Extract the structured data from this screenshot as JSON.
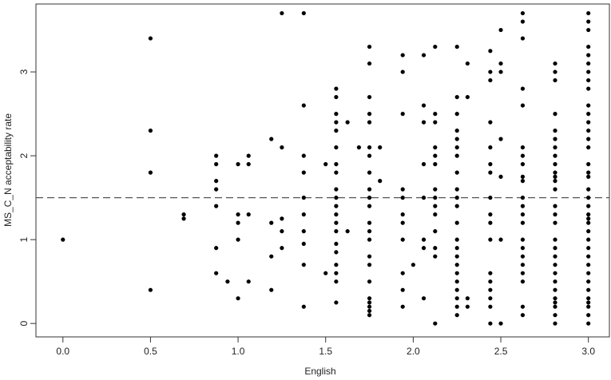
{
  "chart_data": {
    "type": "scatter",
    "x_label": "English",
    "y_label": "MS_C_N acceptability rate",
    "xlim": [
      -0.154,
      3.12
    ],
    "ylim": [
      -0.16,
      3.81
    ],
    "xticks": [
      {
        "value": 0,
        "label": "0.0"
      },
      0.5,
      {
        "value": 1,
        "label": "1.0"
      },
      1.5,
      {
        "value": 2,
        "label": "2.0"
      },
      2.5,
      {
        "value": 3,
        "label": "3.0"
      }
    ],
    "yticks": [
      0,
      1,
      2,
      3
    ],
    "hline": 1.5,
    "color": "#000000",
    "x": [
      0,
      0.5,
      0.5,
      0.5,
      0.5,
      0.69,
      0.69,
      0.875,
      0.875,
      0.875,
      0.875,
      0.875,
      0.875,
      0.875,
      0.94,
      1,
      1,
      1,
      1,
      1,
      1.06,
      1.06,
      1.06,
      1.06,
      1.19,
      1.19,
      1.19,
      1.19,
      1.25,
      1.25,
      1.25,
      1.25,
      1.25,
      1.375,
      1.375,
      1.375,
      1.375,
      1.375,
      1.375,
      1.375,
      1.375,
      1.375,
      1.375,
      1.5,
      1.5,
      1.56,
      1.56,
      1.56,
      1.56,
      1.56,
      1.56,
      1.56,
      1.56,
      1.56,
      1.56,
      1.56,
      1.56,
      1.56,
      1.56,
      1.56,
      1.56,
      1.56,
      1.56,
      1.56,
      1.56,
      1.625,
      1.625,
      1.69,
      1.75,
      1.75,
      1.75,
      1.75,
      1.75,
      1.75,
      1.75,
      1.75,
      1.75,
      1.75,
      1.75,
      1.75,
      1.75,
      1.75,
      1.75,
      1.75,
      1.75,
      1.75,
      1.75,
      1.75,
      1.75,
      1.75,
      1.81,
      1.81,
      1.94,
      1.94,
      1.94,
      1.94,
      1.94,
      1.94,
      1.94,
      1.94,
      1.94,
      1.94,
      1.94,
      2,
      2.06,
      2.06,
      2.06,
      2.06,
      2.06,
      2.06,
      2.06,
      2.06,
      2.125,
      2.125,
      2.125,
      2.125,
      2.125,
      2.125,
      2.125,
      2.125,
      2.125,
      2.125,
      2.125,
      2.125,
      2.125,
      2.125,
      2.25,
      2.25,
      2.25,
      2.25,
      2.25,
      2.25,
      2.25,
      2.25,
      2.25,
      2.25,
      2.25,
      2.25,
      2.25,
      2.25,
      2.25,
      2.25,
      2.25,
      2.25,
      2.25,
      2.25,
      2.25,
      2.25,
      2.31,
      2.31,
      2.31,
      2.31,
      2.44,
      2.44,
      2.44,
      2.44,
      2.44,
      2.44,
      2.44,
      2.44,
      2.44,
      2.44,
      2.44,
      2.44,
      2.44,
      2.44,
      2.44,
      2.44,
      2.44,
      2.5,
      2.5,
      2.5,
      2.5,
      2.5,
      2.5,
      2.5,
      2.625,
      2.625,
      2.625,
      2.625,
      2.625,
      2.625,
      2.625,
      2.625,
      2.625,
      2.625,
      2.625,
      2.625,
      2.625,
      2.625,
      2.625,
      2.625,
      2.625,
      2.625,
      2.625,
      2.625,
      2.625,
      2.625,
      2.81,
      2.81,
      2.81,
      2.81,
      2.81,
      2.81,
      2.81,
      2.81,
      2.81,
      2.81,
      2.81,
      2.81,
      2.81,
      2.81,
      2.81,
      2.81,
      2.81,
      2.81,
      2.81,
      2.81,
      2.81,
      2.81,
      2.81,
      2.81,
      2.81,
      2.81,
      2.81,
      2.81,
      3,
      3,
      3,
      3,
      3,
      3,
      3,
      3,
      3,
      3,
      3,
      3,
      3,
      3,
      3,
      3,
      3,
      3,
      3,
      3,
      3,
      3,
      3,
      3,
      3,
      3,
      3,
      3,
      3,
      3,
      3,
      3,
      3,
      3,
      3,
      3,
      3
    ],
    "values": [
      1,
      3.4,
      2.3,
      1.8,
      0.4,
      1.3,
      1.25,
      2,
      1.9,
      1.7,
      1.6,
      1.4,
      0.9,
      0.6,
      0.5,
      1.9,
      1.3,
      1.2,
      1,
      0.3,
      2,
      1.9,
      1.3,
      0.5,
      2.2,
      1.2,
      0.8,
      0.4,
      3.7,
      2.1,
      1.25,
      1.1,
      0.9,
      3.7,
      2.6,
      2,
      1.8,
      1.5,
      1.3,
      1.1,
      0.95,
      0.7,
      0.2,
      1.9,
      0.6,
      2.8,
      2.7,
      2.5,
      2.4,
      2.3,
      2.1,
      1.9,
      1.8,
      1.6,
      1.5,
      1.4,
      1.3,
      1.2,
      1.1,
      0.95,
      0.85,
      0.7,
      0.6,
      0.5,
      0.25,
      2.4,
      1.1,
      2.1,
      3.3,
      3.1,
      2.7,
      2.5,
      2.4,
      2.1,
      2,
      1.8,
      1.6,
      1.5,
      1.4,
      1.2,
      1.1,
      1,
      0.8,
      0.7,
      0.5,
      0.3,
      0.25,
      0.2,
      0.15,
      0.1,
      2.1,
      1.7,
      3.2,
      3,
      2.5,
      1.6,
      1.5,
      1.3,
      1.2,
      1,
      0.6,
      0.4,
      0.2,
      0.7,
      3.2,
      2.6,
      2.4,
      1.9,
      1.5,
      1,
      0.9,
      0.3,
      3.3,
      2.5,
      2.4,
      2.1,
      2,
      1.9,
      1.6,
      1.5,
      1.4,
      1.3,
      1.1,
      0.9,
      0.8,
      0,
      3.3,
      2.7,
      2.5,
      2.3,
      2.2,
      2.1,
      2,
      1.8,
      1.6,
      1.5,
      1.4,
      1.2,
      1,
      0.9,
      0.8,
      0.7,
      0.6,
      0.5,
      0.4,
      0.3,
      0.2,
      0.1,
      3.1,
      2.7,
      0.3,
      0.2,
      3.25,
      3,
      2.9,
      2.4,
      2.1,
      1.9,
      1.8,
      1.5,
      1.3,
      1.2,
      1,
      0.6,
      0.5,
      0.4,
      0.3,
      0.2,
      0,
      3.5,
      3.1,
      3,
      2.2,
      1.75,
      1,
      0,
      3.7,
      3.6,
      3.4,
      2.8,
      2.6,
      2.1,
      2,
      1.9,
      1.75,
      1.7,
      1.5,
      1.4,
      1.3,
      1.2,
      1,
      0.9,
      0.8,
      0.7,
      0.6,
      0.5,
      0.2,
      0.1,
      3.1,
      3,
      2.9,
      2.5,
      2.3,
      2.2,
      2.1,
      2,
      1.9,
      1.8,
      1.75,
      1.7,
      1.6,
      1.4,
      1.3,
      1.2,
      1,
      0.9,
      0.8,
      0.7,
      0.6,
      0.5,
      0.4,
      0.3,
      0.25,
      0.2,
      0.1,
      0,
      3.7,
      3.6,
      3.5,
      3.3,
      3.2,
      3.1,
      3,
      2.9,
      2.8,
      2.6,
      2.5,
      2.4,
      2.3,
      2.2,
      2.1,
      1.9,
      1.8,
      1.75,
      1.6,
      1.5,
      1.4,
      1.3,
      1.25,
      1.2,
      1.1,
      1,
      0.9,
      0.8,
      0.7,
      0.6,
      0.5,
      0.4,
      0.3,
      0.25,
      0.2,
      0.1,
      0
    ]
  }
}
